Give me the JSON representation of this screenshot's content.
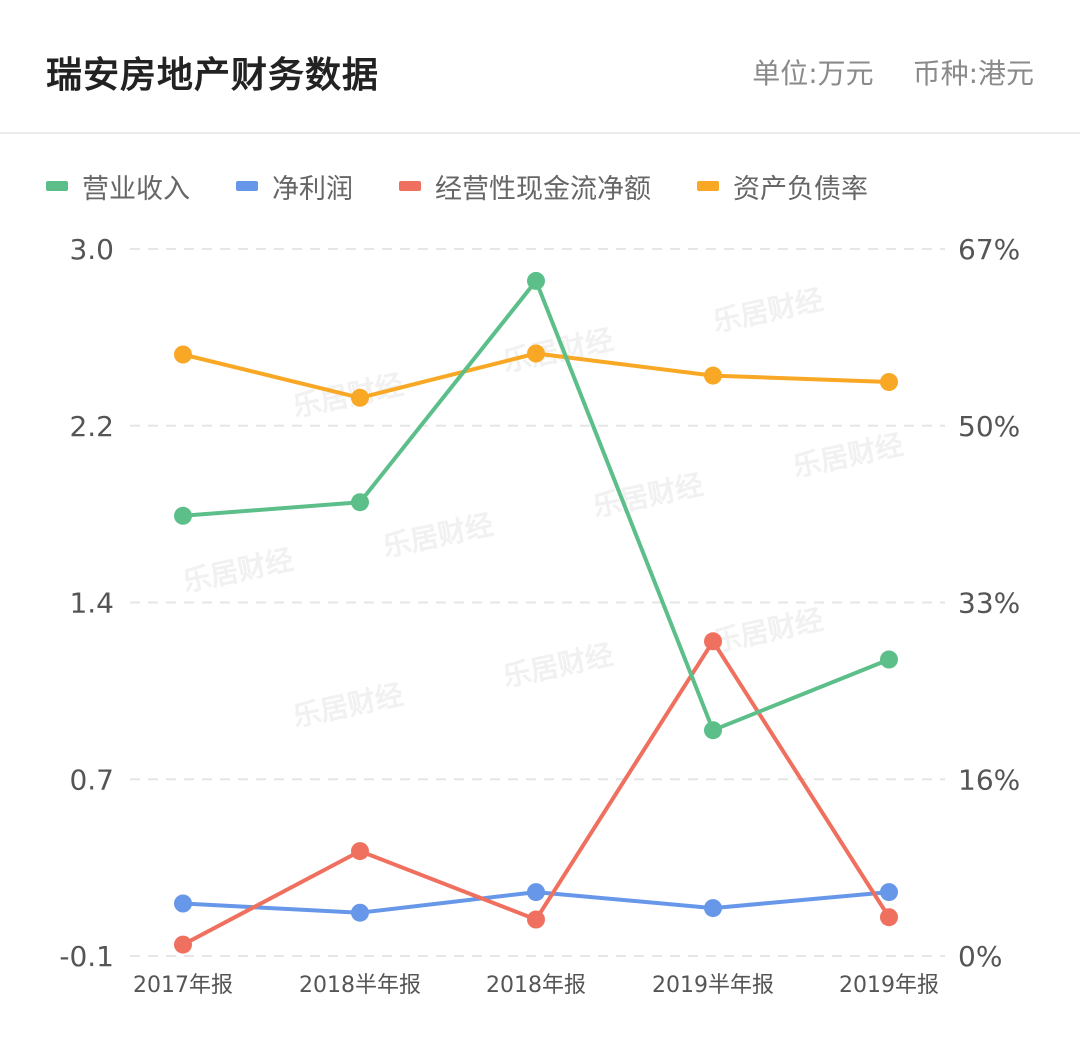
{
  "header": {
    "title": "瑞安房地产财务数据",
    "unit": "单位:万元",
    "currency": "币种:港元"
  },
  "chart_data": {
    "type": "line",
    "categories": [
      "2017年报",
      "2018半年报",
      "2018年报",
      "2019半年报",
      "2019年报"
    ],
    "series": [
      {
        "name": "营业收入",
        "axis": "left",
        "color": "#5cbf8a",
        "values": [
          1.83,
          1.89,
          2.86,
          0.89,
          1.2
        ]
      },
      {
        "name": "净利润",
        "axis": "left",
        "color": "#6797e8",
        "values": [
          0.13,
          0.09,
          0.18,
          0.11,
          0.18
        ]
      },
      {
        "name": "经营性现金流净额",
        "axis": "left",
        "color": "#f07060",
        "values": [
          -0.05,
          0.36,
          0.06,
          1.28,
          0.07
        ]
      },
      {
        "name": "资产负债率",
        "axis": "right",
        "color": "#f8a825",
        "values": [
          57.0,
          52.9,
          57.1,
          55.0,
          54.4
        ]
      }
    ],
    "left_axis": {
      "ticks": [
        "3.0",
        "2.2",
        "1.4",
        "0.7",
        "-0.1"
      ],
      "min": -0.1,
      "max": 3.0
    },
    "right_axis": {
      "ticks": [
        "67%",
        "50%",
        "33%",
        "16%",
        "0%"
      ],
      "min": 0,
      "max": 67
    },
    "grid": true,
    "legend_position": "top-left",
    "watermark": "乐居财经"
  }
}
